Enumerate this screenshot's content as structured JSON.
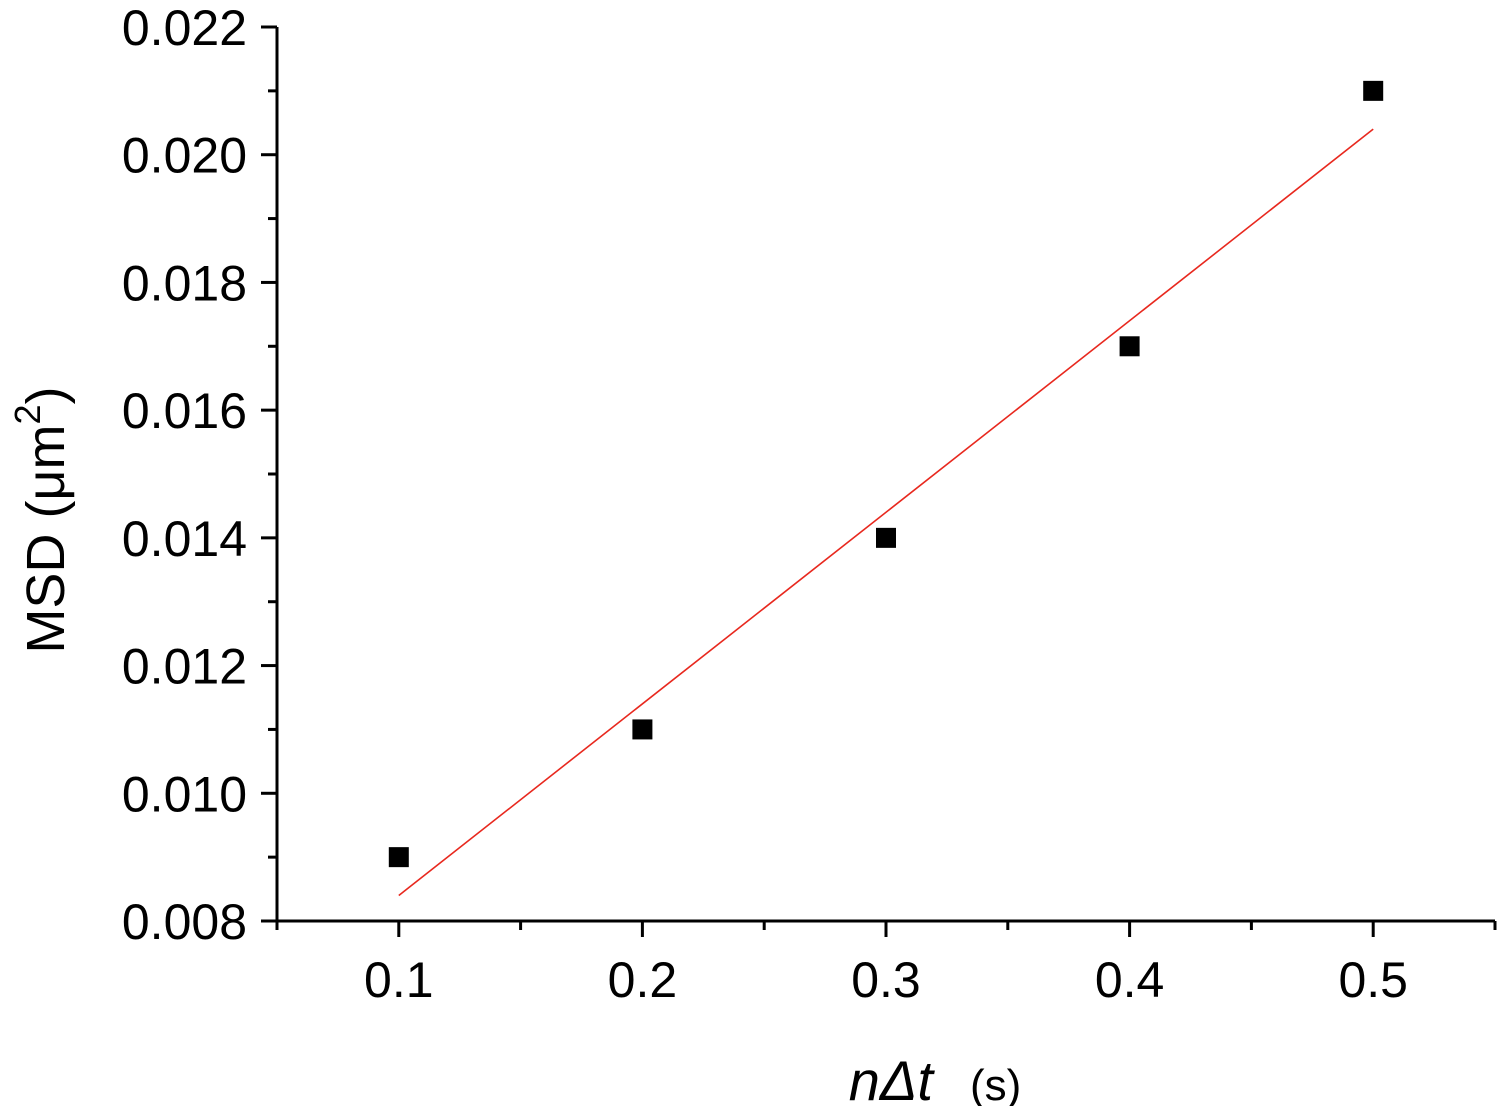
{
  "chart_data": {
    "type": "scatter",
    "x_label": {
      "main": "nΔt",
      "unit": "(s)"
    },
    "y_label": {
      "prefix": "MSD (μm",
      "sup": "2",
      "suffix": ")"
    },
    "xlim": [
      0.05,
      0.55
    ],
    "ylim": [
      0.008,
      0.022
    ],
    "x_ticks": [
      {
        "value": 0.1,
        "label": "0.1"
      },
      {
        "value": 0.2,
        "label": "0.2"
      },
      {
        "value": 0.3,
        "label": "0.3"
      },
      {
        "value": 0.4,
        "label": "0.4"
      },
      {
        "value": 0.5,
        "label": "0.5"
      }
    ],
    "x_minor_ticks": [
      0.05,
      0.15,
      0.25,
      0.35,
      0.45,
      0.55
    ],
    "y_ticks": [
      {
        "value": 0.008,
        "label": "0.008"
      },
      {
        "value": 0.01,
        "label": "0.010"
      },
      {
        "value": 0.012,
        "label": "0.012"
      },
      {
        "value": 0.014,
        "label": "0.014"
      },
      {
        "value": 0.016,
        "label": "0.016"
      },
      {
        "value": 0.018,
        "label": "0.018"
      },
      {
        "value": 0.02,
        "label": "0.020"
      },
      {
        "value": 0.022,
        "label": "0.022"
      }
    ],
    "y_minor_ticks": [
      0.009,
      0.011,
      0.013,
      0.015,
      0.017,
      0.019,
      0.021
    ],
    "series": [
      {
        "marker": "square",
        "color": "#000000",
        "x": [
          0.1,
          0.2,
          0.3,
          0.4,
          0.5
        ],
        "y": [
          0.009,
          0.011,
          0.014,
          0.017,
          0.021
        ]
      }
    ],
    "fit_line": {
      "color": "#e8281e",
      "x": [
        0.1,
        0.5
      ],
      "y": [
        0.0084,
        0.0204
      ]
    },
    "grid": false,
    "legend": "none"
  }
}
